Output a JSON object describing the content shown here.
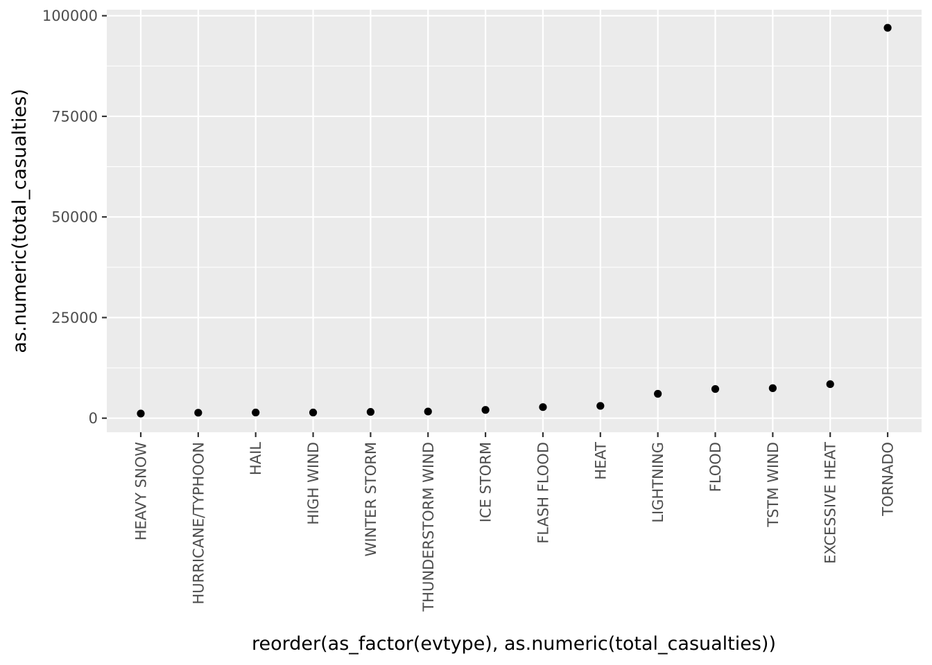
{
  "chart_data": {
    "type": "scatter",
    "xlabel": "reorder(as_factor(evtype), as.numeric(total_casualties))",
    "ylabel": "as.numeric(total_casualties)",
    "categories": [
      "HEAVY SNOW",
      "HURRICANE/TYPHOON",
      "HAIL",
      "HIGH WIND",
      "WINTER STORM",
      "THUNDERSTORM WIND",
      "ICE STORM",
      "FLASH FLOOD",
      "HEAT",
      "LIGHTNING",
      "FLOOD",
      "TSTM WIND",
      "EXCESSIVE HEAT",
      "TORNADO"
    ],
    "values": [
      1150,
      1350,
      1400,
      1400,
      1550,
      1650,
      2050,
      2750,
      3050,
      6050,
      7250,
      7450,
      8450,
      97000
    ],
    "ylim": [
      -3500,
      101500
    ],
    "yticks": [
      0,
      25000,
      50000,
      75000,
      100000
    ],
    "ytick_labels": [
      "0",
      "25000",
      "50000",
      "75000",
      "100000"
    ],
    "grid": true,
    "colors": {
      "panel_background": "#ebebeb",
      "grid_line": "#ffffff",
      "point": "#000000",
      "tick_label": "#4d4d4d",
      "tick_mark": "#333333",
      "axis_title": "#000000"
    }
  }
}
